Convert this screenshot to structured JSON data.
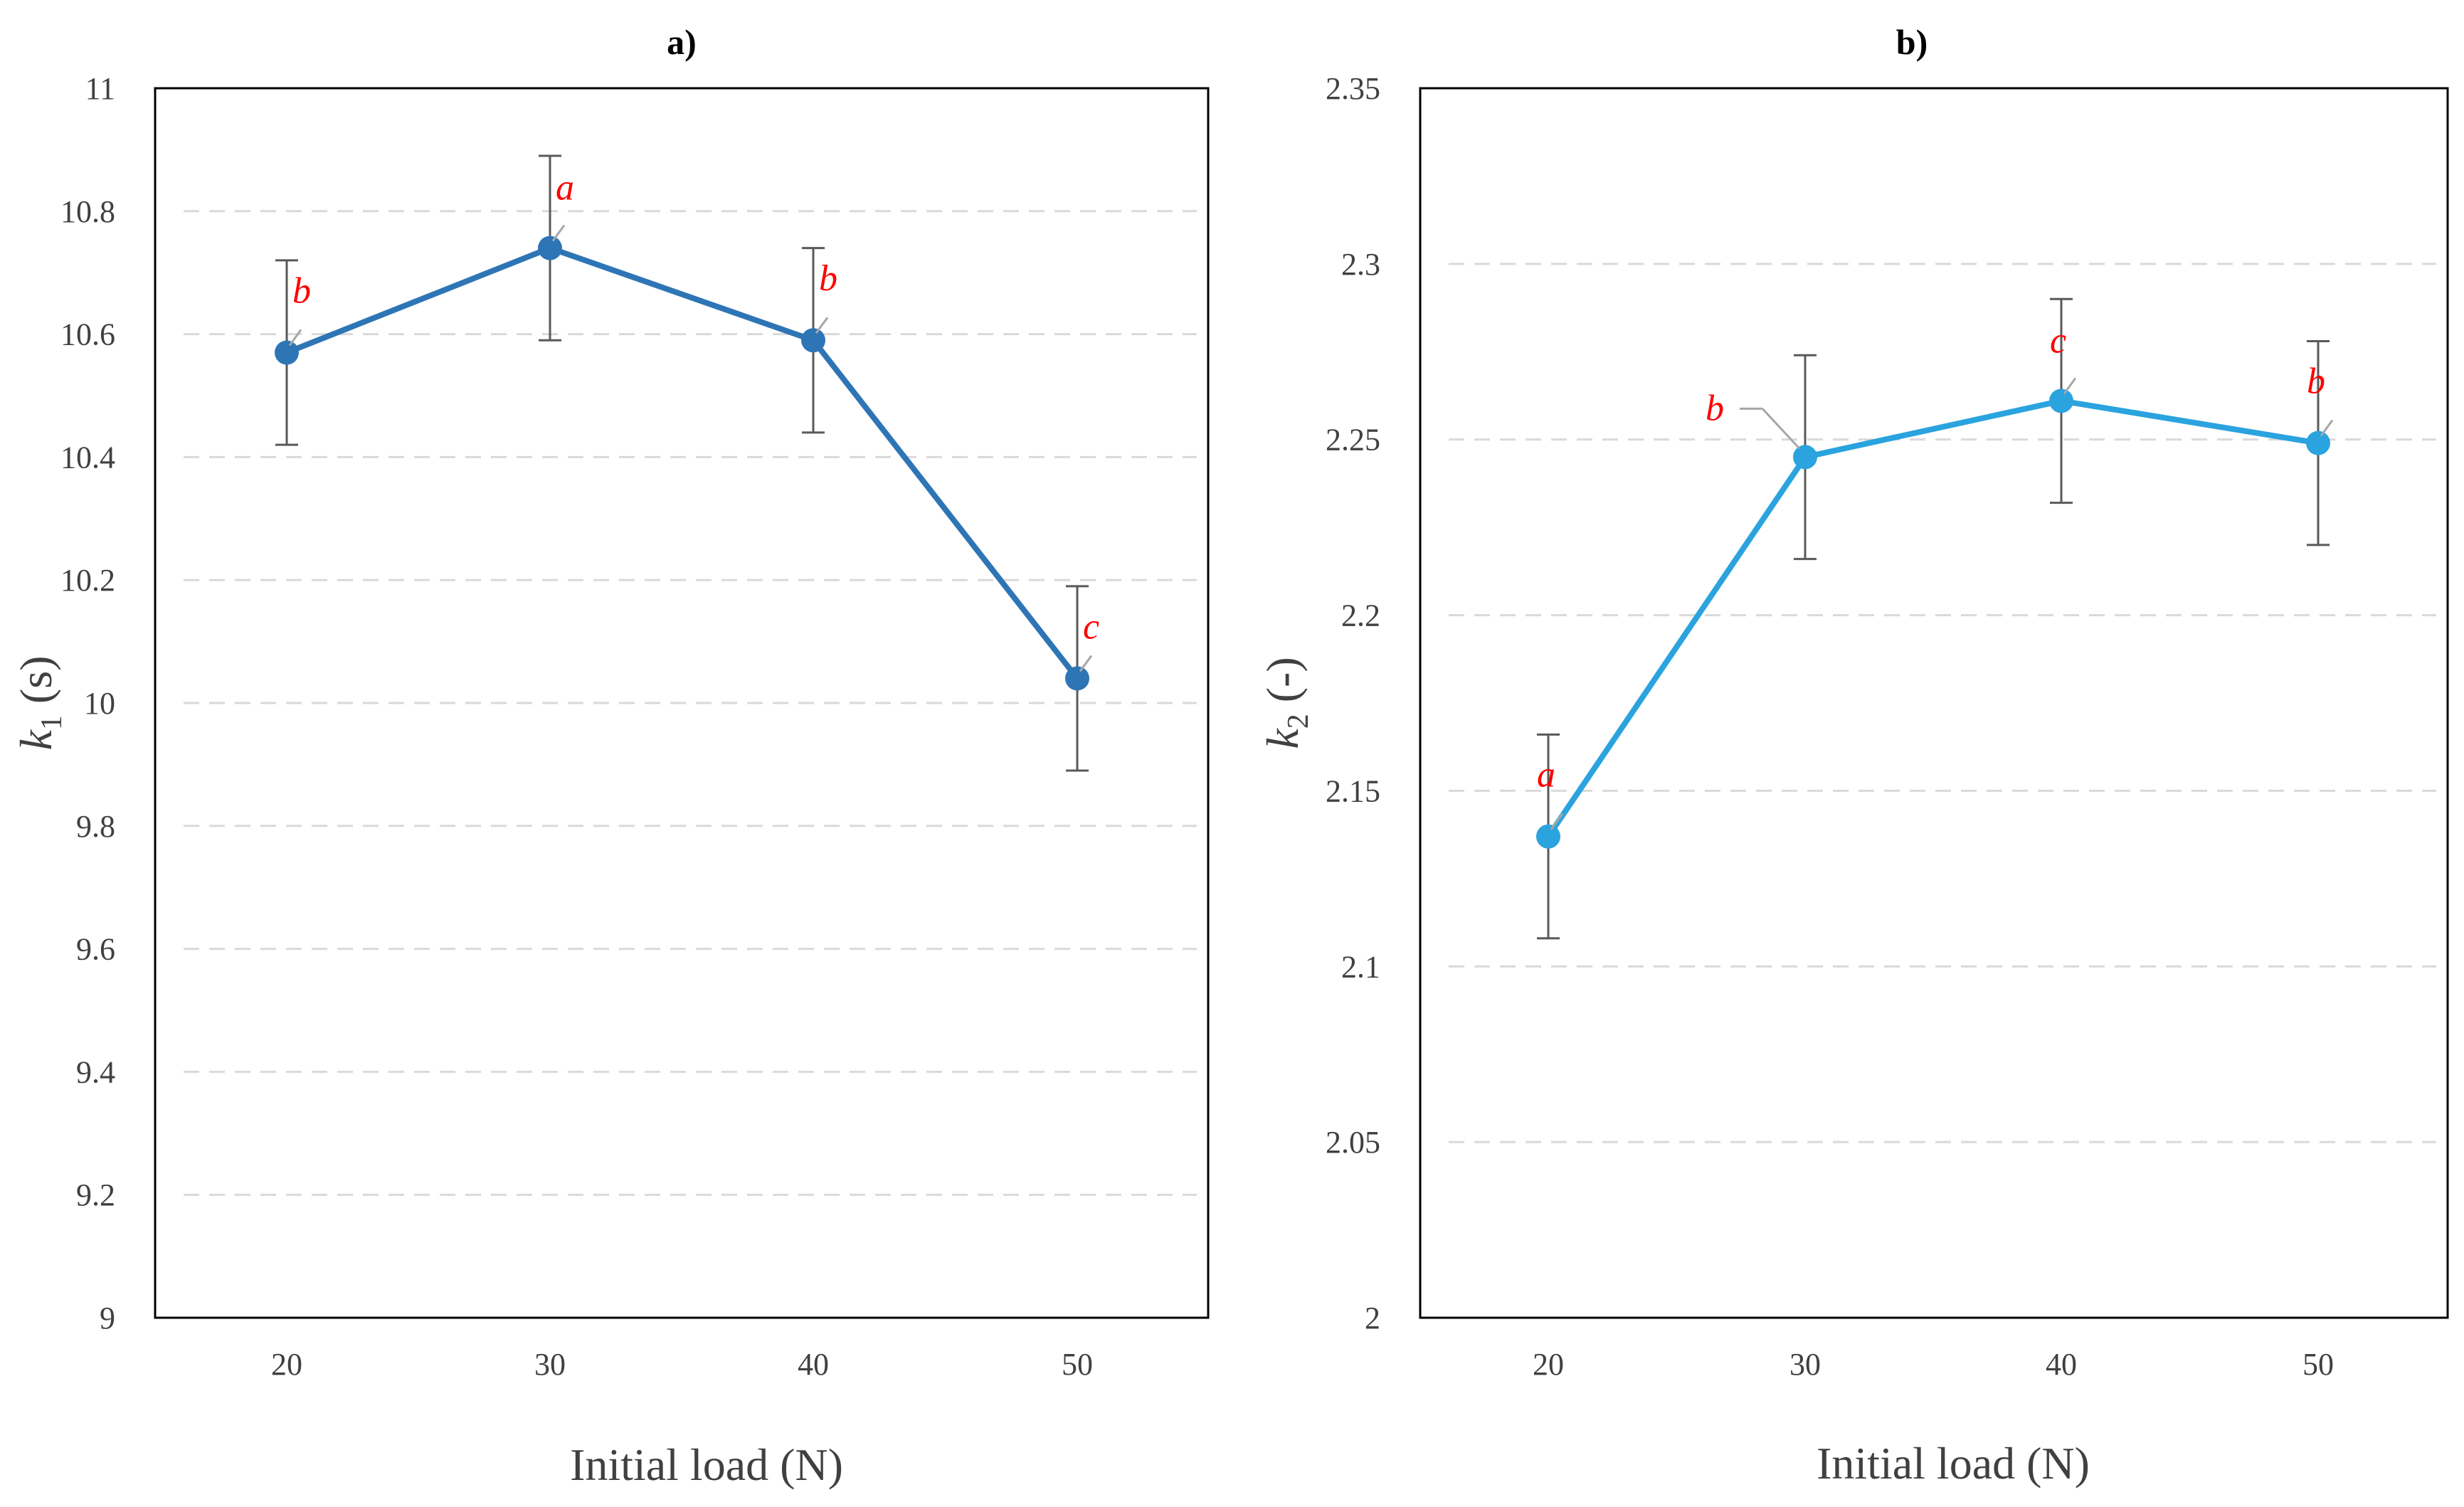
{
  "chart_data": [
    {
      "type": "line",
      "title": "a)",
      "xlabel": "Initial load (N)",
      "ylabel": {
        "symbol": "k",
        "subscript": "1",
        "unit": " (s)"
      },
      "categories": [
        "20",
        "30",
        "40",
        "50"
      ],
      "ylim": [
        9,
        11
      ],
      "yticks": [
        "9",
        "9.2",
        "9.4",
        "9.6",
        "9.8",
        "10",
        "10.2",
        "10.4",
        "10.6",
        "10.8",
        "11"
      ],
      "grid": "horizontal dashed",
      "series": [
        {
          "values": [
            10.57,
            10.74,
            10.59,
            10.04
          ],
          "error": [
            0.15,
            0.15,
            0.15,
            0.15
          ],
          "labels": [
            "b",
            "a",
            "b",
            "c"
          ],
          "color": "#2e75b6"
        }
      ]
    },
    {
      "type": "line",
      "title": "b)",
      "xlabel": "Initial load (N)",
      "ylabel": {
        "symbol": "k",
        "subscript": "2",
        "unit": " (-)"
      },
      "categories": [
        "20",
        "30",
        "40",
        "50"
      ],
      "ylim": [
        2,
        2.35
      ],
      "yticks": [
        "2",
        "2.05",
        "2.1",
        "2.15",
        "2.2",
        "2.25",
        "2.3",
        "2.35"
      ],
      "grid": "horizontal dashed",
      "series": [
        {
          "values": [
            2.137,
            2.245,
            2.261,
            2.249
          ],
          "error": [
            0.029,
            0.029,
            0.029,
            0.029
          ],
          "labels": [
            "a",
            "b",
            "c",
            "b"
          ],
          "color": "#2aa3de"
        }
      ]
    }
  ]
}
